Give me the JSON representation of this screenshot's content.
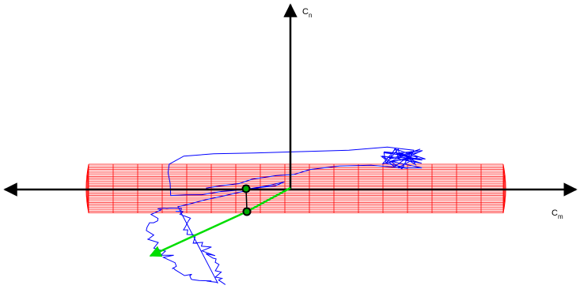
{
  "labels": {
    "vertical_axis": {
      "main": "C",
      "sub": "n"
    },
    "horizontal_axis": {
      "main": "C",
      "sub": "m"
    }
  },
  "colors": {
    "axes": "#000000",
    "cylinder": "#ff0000",
    "trajectory": "#0000ff",
    "vector": "#00dd00",
    "marker_fill": "#00aa00",
    "marker_stroke": "#000000"
  }
}
